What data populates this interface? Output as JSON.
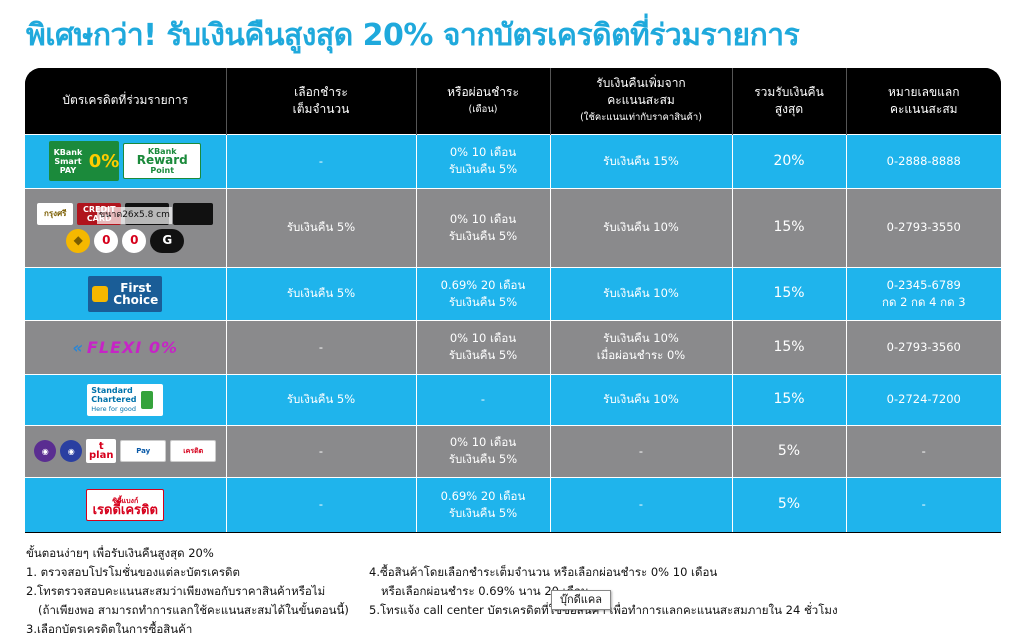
{
  "title": "พิเศษกว่า! รับเงินคืนสูงสุด 20% จากบัตรเครดิตที่ร่วมรายการ",
  "header": {
    "col0": "บัตรเครดิตที่ร่วมรายการ",
    "col1_line1": "เลือกชำระ",
    "col1_line2": "เต็มจำนวน",
    "col2_line1": "หรือผ่อนชำระ",
    "col2_sub": "(เดือน)",
    "col3_line1": "รับเงินคืนเพิ่มจาก",
    "col3_line2": "คะแนนสะสม",
    "col3_sub": "(ใช้คะแนนเท่ากับราคาสินค้า)",
    "col4_line1": "รวมรับเงินคืน",
    "col4_line2": "สูงสุด",
    "col5_line1": "หมายเลขแลก",
    "col5_line2": "คะแนนสะสม"
  },
  "logos": {
    "kbank_top": "KBank",
    "kbank_mid": "Smart PAY",
    "kbank_zero": "0%",
    "reward_top": "KBank",
    "reward_main": "Reward",
    "reward_sub": "Point",
    "krungsri": "กรุงศรี",
    "credit_card": "CREDIT CARD",
    "image_size": "ขนาด26x5.8 cm",
    "first_choice_1": "First",
    "first_choice_2": "Choice",
    "flexi_arrow": "«",
    "flexi": "FLEXI 0%",
    "sc_1": "Standard",
    "sc_2": "Chartered",
    "sc_3": "Here for good",
    "tplan": "t plan",
    "credit_small": "เครดิต",
    "crediti_top": "ซิตี้แบงก์",
    "crediti": "เรดดี้เครดิต"
  },
  "rows": [
    {
      "full": "-",
      "inst1": "0% 10 เดือน",
      "inst2": "รับเงินคืน 5%",
      "points1": "รับเงินคืน 15%",
      "points2": "",
      "total": "20%",
      "phone1": "0-2888-8888",
      "phone2": "",
      "style": "blue"
    },
    {
      "full": "รับเงินคืน 5%",
      "inst1": "0% 10 เดือน",
      "inst2": "รับเงินคืน 5%",
      "points1": "รับเงินคืน 10%",
      "points2": "",
      "total": "15%",
      "phone1": "0-2793-3550",
      "phone2": "",
      "style": "gray"
    },
    {
      "full": "รับเงินคืน 5%",
      "inst1": "0.69% 20 เดือน",
      "inst2": "รับเงินคืน 5%",
      "points1": "รับเงินคืน 10%",
      "points2": "",
      "total": "15%",
      "phone1": "0-2345-6789",
      "phone2": "กด 2 กด 4 กด 3",
      "style": "blue"
    },
    {
      "full": "-",
      "inst1": "0% 10 เดือน",
      "inst2": "รับเงินคืน 5%",
      "points1": "รับเงินคืน 10%",
      "points2": "เมื่อผ่อนชำระ 0%",
      "total": "15%",
      "phone1": "0-2793-3560",
      "phone2": "",
      "style": "gray"
    },
    {
      "full": "รับเงินคืน 5%",
      "inst1": "-",
      "inst2": "",
      "points1": "รับเงินคืน 10%",
      "points2": "",
      "total": "15%",
      "phone1": "0-2724-7200",
      "phone2": "",
      "style": "blue"
    },
    {
      "full": "-",
      "inst1": "0% 10 เดือน",
      "inst2": "รับเงินคืน 5%",
      "points1": "-",
      "points2": "",
      "total": "5%",
      "phone1": "-",
      "phone2": "",
      "style": "gray"
    },
    {
      "full": "-",
      "inst1": "0.69% 20 เดือน",
      "inst2": "รับเงินคืน 5%",
      "points1": "-",
      "points2": "",
      "total": "5%",
      "phone1": "-",
      "phone2": "",
      "style": "blue"
    }
  ],
  "steps": {
    "heading": "ขั้นตอนง่ายๆ เพื่อรับเงินคืนสูงสุด 20%",
    "s1": "1. ตรวจสอบโปรโมชั่นของแต่ละบัตรเครดิต",
    "s2a": "2.โทรตรวจสอบคะแนนสะสมว่าเพียงพอกับราคาสินค้าหรือไม่",
    "s2b": "(ถ้าเพียงพอ สามารถทำการแลกใช้คะแนนสะสมได้ในขั้นตอนนี้)",
    "s3": "3.เลือกบัตรเครดิตในการซื้อสินค้า",
    "s4a": "4.ซื้อสินค้าโดยเลือกชำระเต็มจำนวน หรือเลือกผ่อนชำระ 0% 10 เดือน",
    "s4b": "หรือเลือกผ่อนชำระ 0.69% นาน 20 เดือน",
    "s5": "5.โทรแจ้ง call center บัตรเครดิตที่ใช้ซื้อสินค้า เพื่อทำการแลกคะแนนสะสมภายใน 24 ชั่วโมง"
  },
  "tooltip": "บุ๊กดีแคล"
}
